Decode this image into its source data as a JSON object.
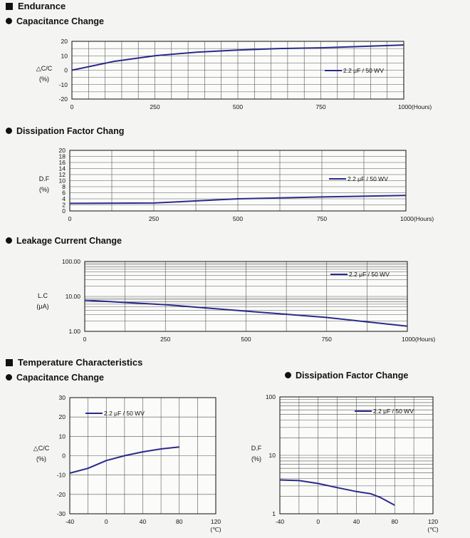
{
  "sections": {
    "endurance": "Endurance",
    "cap_change": "Capacitance Change",
    "df_change": "Dissipation Factor Chang",
    "lc_change": "Leakage Current Change",
    "temp": "Temperature Characteristics",
    "temp_cap": "Capacitance Change",
    "temp_df": "Dissipation Factor Change"
  },
  "colors": {
    "line": "#2a2a8c",
    "grid": "#555555",
    "frame": "#222222"
  },
  "chart_data": [
    {
      "id": "endurance-cap",
      "type": "line",
      "ylabel": [
        "△C/C",
        "(%)"
      ],
      "xlim": [
        0,
        1000
      ],
      "ylim": [
        -20,
        20
      ],
      "yscale": "linear",
      "xticks": [
        0,
        250,
        500,
        750,
        1000
      ],
      "xtick_labels": [
        "0",
        "250",
        "500",
        "750",
        "1000(Hours)"
      ],
      "yticks": [
        -20,
        -10,
        0,
        10,
        20
      ],
      "ytick_labels": [
        "-20",
        "-10",
        "0",
        "10",
        "20"
      ],
      "grid_x": [
        50,
        100,
        150,
        200,
        250,
        300,
        350,
        400,
        450,
        500,
        550,
        600,
        650,
        700,
        750,
        800,
        850,
        900,
        950
      ],
      "grid_y": [
        -15,
        -10,
        -5,
        0,
        5,
        10,
        15
      ],
      "legend": "2.2 μF / 50 WV",
      "series": [
        {
          "name": "2.2 μF / 50 WV",
          "x": [
            0,
            125,
            250,
            375,
            500,
            625,
            750,
            875,
            1000
          ],
          "y": [
            0,
            6,
            10,
            12.5,
            14,
            15,
            15.5,
            16.5,
            17.5
          ]
        }
      ]
    },
    {
      "id": "endurance-df",
      "type": "line",
      "ylabel": [
        "D.F",
        "(%)"
      ],
      "xlim": [
        0,
        1000
      ],
      "ylim": [
        0,
        20
      ],
      "yscale": "linear",
      "xticks": [
        0,
        250,
        500,
        750,
        1000
      ],
      "xtick_labels": [
        "0",
        "250",
        "500",
        "750",
        "1000(Hours)"
      ],
      "yticks": [
        0,
        2,
        4,
        6,
        8,
        10,
        12,
        14,
        16,
        18,
        20
      ],
      "ytick_labels": [
        "0",
        "2",
        "4",
        "6",
        "8",
        "10",
        "12",
        "14",
        "16",
        "18",
        "20"
      ],
      "grid_x": [
        125,
        250,
        375,
        500,
        625,
        750,
        875
      ],
      "grid_y": [
        2,
        4,
        6,
        8,
        10,
        12,
        14,
        16,
        18
      ],
      "legend": "2.2 μF / 50 WV",
      "series": [
        {
          "name": "2.2 μF / 50 WV",
          "x": [
            0,
            250,
            500,
            750,
            1000
          ],
          "y": [
            2.5,
            2.6,
            4.0,
            4.6,
            5.1
          ]
        }
      ]
    },
    {
      "id": "endurance-lc",
      "type": "line",
      "ylabel": [
        "L.C",
        "(μA)"
      ],
      "xlim": [
        0,
        1000
      ],
      "ylim": [
        1,
        100
      ],
      "yscale": "log",
      "xticks": [
        0,
        250,
        500,
        750,
        1000
      ],
      "xtick_labels": [
        "0",
        "250",
        "500",
        "750",
        "1000(Hours)"
      ],
      "yticks": [
        1,
        10,
        100
      ],
      "ytick_labels": [
        "1.00",
        "10.00",
        "100.00"
      ],
      "grid_x": [
        125,
        250,
        375,
        500,
        625,
        750,
        875
      ],
      "grid_y": [
        2,
        3,
        4,
        5,
        6,
        7,
        8,
        9,
        10,
        20,
        30,
        40,
        50,
        60,
        70,
        80,
        90
      ],
      "legend": "2.2 μF / 50 WV",
      "series": [
        {
          "name": "2.2 μF / 50 WV",
          "x": [
            0,
            250,
            500,
            750,
            1000
          ],
          "y": [
            7.8,
            5.8,
            3.8,
            2.5,
            1.4
          ]
        }
      ]
    },
    {
      "id": "temp-cap",
      "type": "line",
      "ylabel": [
        "△C/C",
        "(%)"
      ],
      "xlim": [
        -40,
        120
      ],
      "ylim": [
        -30,
        30
      ],
      "yscale": "linear",
      "xticks": [
        -40,
        0,
        40,
        80,
        120
      ],
      "xtick_labels": [
        "-40",
        "0",
        "40",
        "80",
        "120"
      ],
      "xunit": "(℃)",
      "yticks": [
        -30,
        -20,
        -10,
        0,
        10,
        20,
        30
      ],
      "ytick_labels": [
        "-30",
        "-20",
        "-10",
        "0",
        "10",
        "20",
        "30"
      ],
      "grid_x": [
        -20,
        0,
        20,
        40,
        60,
        80,
        100
      ],
      "grid_y": [
        -20,
        -10,
        0,
        10,
        20
      ],
      "legend": "2.2 μF / 50 WV",
      "series": [
        {
          "name": "2.2 μF / 50 WV",
          "x": [
            -40,
            -20,
            0,
            20,
            40,
            60,
            80
          ],
          "y": [
            -9,
            -6.5,
            -2.5,
            0,
            2,
            3.5,
            4.5
          ]
        }
      ]
    },
    {
      "id": "temp-df",
      "type": "line",
      "ylabel": [
        "D.F",
        "(%)"
      ],
      "xlim": [
        -40,
        120
      ],
      "ylim": [
        1,
        100
      ],
      "yscale": "log",
      "xticks": [
        -40,
        0,
        40,
        80,
        120
      ],
      "xtick_labels": [
        "-40",
        "0",
        "40",
        "80",
        "120"
      ],
      "xunit": "(℃)",
      "yticks": [
        1,
        10,
        100
      ],
      "ytick_labels": [
        "1",
        "10",
        "100"
      ],
      "grid_x": [
        -20,
        0,
        20,
        40,
        60,
        80,
        100
      ],
      "grid_y": [
        2,
        3,
        4,
        5,
        6,
        7,
        8,
        9,
        10,
        20,
        30,
        40,
        50,
        60,
        70,
        80,
        90
      ],
      "legend": "2.2 μF / 50 WV",
      "series": [
        {
          "name": "2.2 μF / 50 WV",
          "x": [
            -40,
            -20,
            0,
            20,
            40,
            55,
            65,
            80
          ],
          "y": [
            3.8,
            3.7,
            3.3,
            2.8,
            2.4,
            2.2,
            1.9,
            1.4
          ]
        }
      ]
    }
  ]
}
